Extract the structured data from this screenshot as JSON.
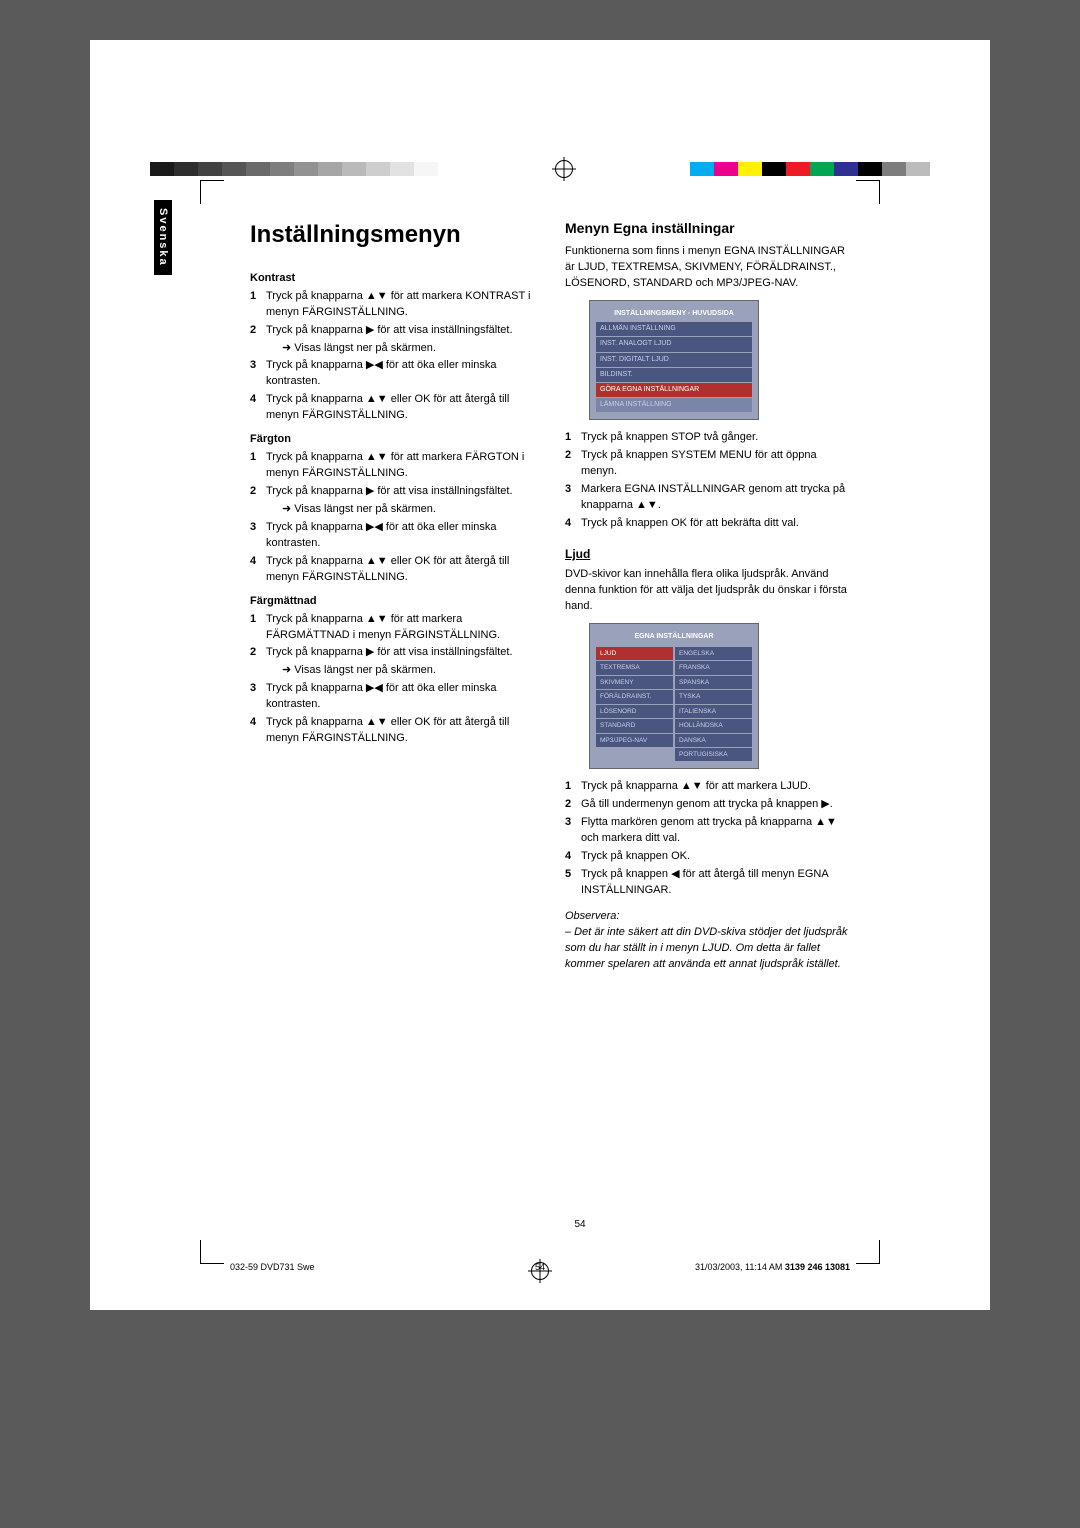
{
  "page": {
    "title": "Inställningsmenyn",
    "language_tab": "Svenska",
    "page_number_center": "54",
    "footer_left": "032-59 DVD731 Swe",
    "footer_mid": "54",
    "footer_right_date": "31/03/2003, 11:14 AM",
    "footer_right_code": "3139 246 13081"
  },
  "reg_colors_left": [
    "#1a1a1a",
    "#2e2e2e",
    "#424242",
    "#565656",
    "#6a6a6a",
    "#7e7e7e",
    "#929292",
    "#a6a6a6",
    "#bababa",
    "#cecece",
    "#e2e2e2",
    "#f6f6f6"
  ],
  "reg_colors_right": [
    "#00aeef",
    "#ec008c",
    "#fff200",
    "#000000",
    "#ed1c24",
    "#00a651",
    "#2e3192",
    "#000000",
    "#7d7d7d",
    "#bcbcbc"
  ],
  "left_col": {
    "sections": [
      {
        "heading": "Kontrast",
        "steps": [
          "Tryck på knapparna ▲▼ för att markera KONTRAST i menyn FÄRGINSTÄLLNING.",
          "Tryck på knapparna ▶ för att visa inställningsfältet.",
          "Tryck på knapparna ▶◀ för att öka eller minska kontrasten.",
          "Tryck på knapparna ▲▼ eller OK för att återgå till menyn FÄRGINSTÄLLNING."
        ],
        "after_step2": "Visas längst ner på skärmen."
      },
      {
        "heading": "Färgton",
        "steps": [
          "Tryck på knapparna ▲▼ för att markera FÄRGTON i menyn FÄRGINSTÄLLNING.",
          "Tryck på knapparna ▶ för att visa inställningsfältet.",
          "Tryck på knapparna ▶◀ för att öka eller minska kontrasten.",
          "Tryck på knapparna ▲▼ eller OK för att återgå till menyn FÄRGINSTÄLLNING."
        ],
        "after_step2": "Visas längst ner på skärmen."
      },
      {
        "heading": "Färgmättnad",
        "steps": [
          "Tryck på knapparna ▲▼ för att markera FÄRGMÄTTNAD i menyn FÄRGINSTÄLLNING.",
          "Tryck på knapparna ▶ för att visa inställningsfältet.",
          "Tryck på knapparna ▶◀ för att öka eller minska kontrasten.",
          "Tryck på knapparna ▲▼ eller OK för att återgå till menyn FÄRGINSTÄLLNING."
        ],
        "after_step2": "Visas längst ner på skärmen."
      }
    ]
  },
  "right_col": {
    "main_heading": "Menyn Egna inställningar",
    "intro": "Funktionerna som finns i menyn EGNA INSTÄLLNINGAR är LJUD, TEXTREMSA, SKIVMENY, FÖRÄLDRAINST., LÖSENORD, STANDARD och MP3/JPEG-NAV.",
    "menu1": {
      "title": "INSTÄLLNINGSMENY - HUVUDSIDA",
      "rows": [
        {
          "label": "ALLMÄN INSTÄLLNING",
          "hl": false
        },
        {
          "label": "INST. ANALOGT LJUD",
          "hl": false
        },
        {
          "label": "INST. DIGITALT LJUD",
          "hl": false
        },
        {
          "label": "BILDINST.",
          "hl": false
        },
        {
          "label": "GÖRA EGNA INSTÄLLNINGAR",
          "hl": true
        },
        {
          "label": "LÄMNA INSTÄLLNING",
          "hl": false,
          "disabled": true
        }
      ]
    },
    "steps1": [
      "Tryck på knappen STOP två gånger.",
      "Tryck på knappen SYSTEM MENU för att öppna menyn.",
      "Markera EGNA INSTÄLLNINGAR genom att trycka på knapparna ▲▼.",
      "Tryck på knappen OK för att bekräfta ditt val."
    ],
    "ljud_heading": "Ljud",
    "ljud_intro": "DVD-skivor kan innehålla flera olika ljudspråk. Använd denna funktion för att välja det ljudspråk du önskar i första hand.",
    "menu2": {
      "title": "EGNA INSTÄLLNINGAR",
      "left": [
        "LJUD",
        "TEXTREMSA",
        "SKIVMENY",
        "FÖRÄLDRAINST.",
        "LÖSENORD",
        "STANDARD",
        "MP3/JPEG-NAV"
      ],
      "right": [
        "ENGELSKA",
        "FRANSKA",
        "SPANSKA",
        "TYSKA",
        "ITALIENSKA",
        "HOLLÄNDSKA",
        "DANSKA",
        "PORTUGISISKA"
      ]
    },
    "steps2": [
      "Tryck på knapparna ▲▼ för att markera LJUD.",
      "Gå till undermenyn genom att trycka på knappen ▶.",
      "Flytta markören genom att trycka på knapparna ▲▼ och markera ditt val.",
      "Tryck på knappen OK.",
      "Tryck på knappen ◀ för att återgå till menyn EGNA INSTÄLLNINGAR."
    ],
    "observera_heading": "Observera:",
    "observera_body": "– Det är inte säkert att din DVD-skiva stödjer det ljudspråk som du har ställt in i menyn LJUD. Om detta är fallet kommer spelaren att använda ett annat ljudspråk istället."
  }
}
